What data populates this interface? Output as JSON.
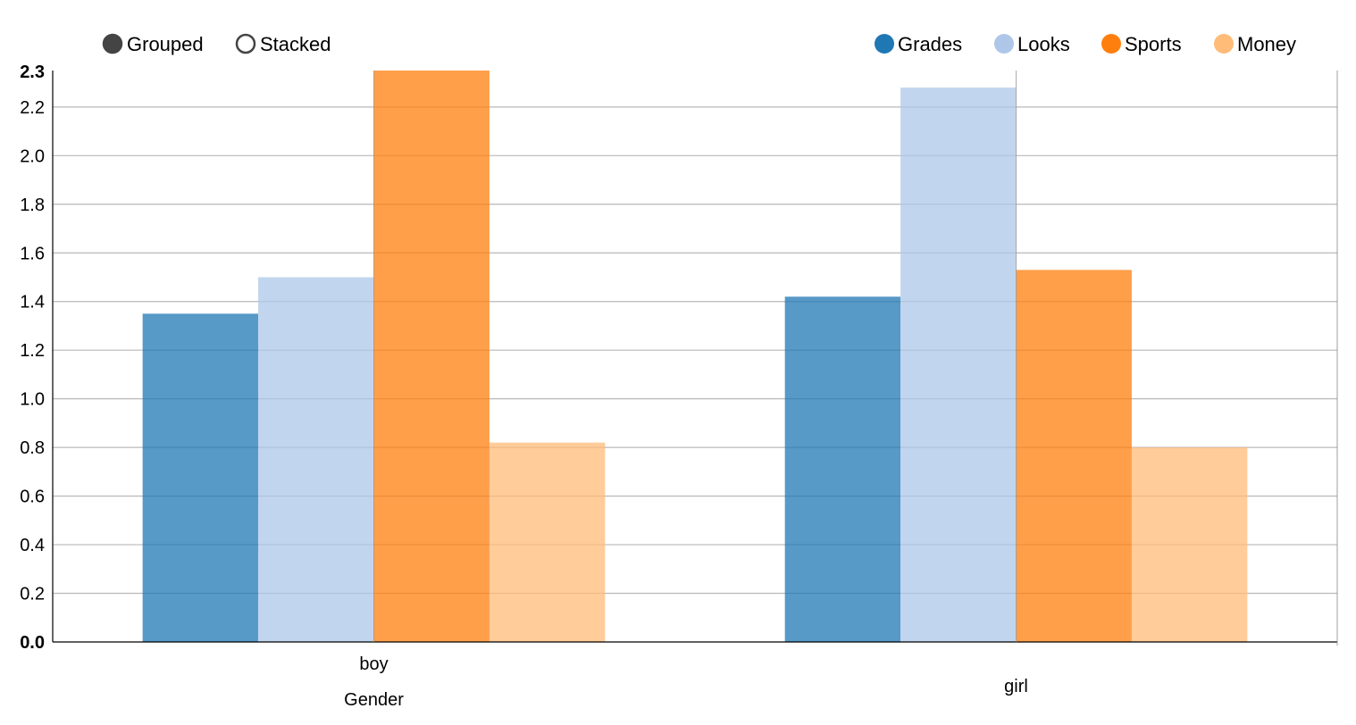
{
  "controls": {
    "grouped_label": "Grouped",
    "stacked_label": "Stacked",
    "selected": "Grouped"
  },
  "chart_data": {
    "type": "bar",
    "mode": "grouped",
    "xlabel": "Gender",
    "ylabel": "",
    "categories": [
      "boy",
      "girl"
    ],
    "series": [
      {
        "name": "Grades",
        "color": "#1f77b4",
        "values": [
          1.35,
          1.42
        ]
      },
      {
        "name": "Looks",
        "color": "#aec7e8",
        "values": [
          1.5,
          2.28
        ]
      },
      {
        "name": "Sports",
        "color": "#ff7f0e",
        "values": [
          2.35,
          1.53
        ]
      },
      {
        "name": "Money",
        "color": "#ffbb78",
        "values": [
          0.82,
          0.8
        ]
      }
    ],
    "ylim": [
      0,
      2.35
    ],
    "yticks": [
      "0.0",
      "0.2",
      "0.4",
      "0.6",
      "0.8",
      "1.0",
      "1.2",
      "1.4",
      "1.6",
      "1.8",
      "2.0",
      "2.2"
    ],
    "ymax_label": "2.3",
    "grid": true,
    "legend_position": "top-right"
  }
}
